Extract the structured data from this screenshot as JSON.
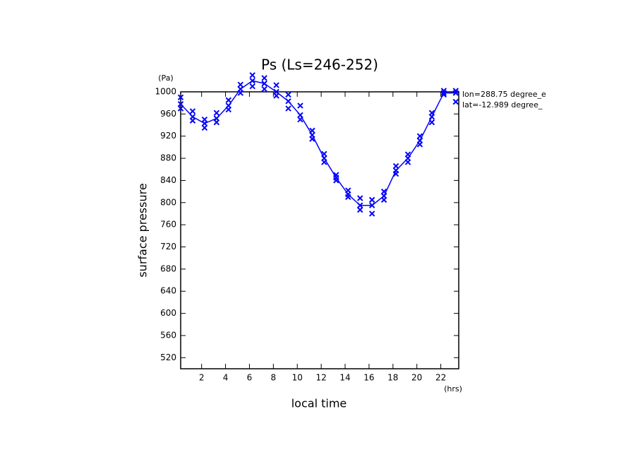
{
  "chart_data": {
    "type": "line",
    "title": "Ps (Ls=246-252)",
    "y_label": "surface pressure",
    "y_unit": "(Pa)",
    "x_label": "local time",
    "x_unit": "(hrs)",
    "annotations": [
      "lon=288.75 degree_e",
      "lat=-12.989 degree_"
    ],
    "xlim": [
      0.25,
      23.5
    ],
    "ylim": [
      500,
      1000
    ],
    "xticks": [
      2,
      4,
      6,
      8,
      10,
      12,
      14,
      16,
      18,
      20,
      22
    ],
    "yticks": [
      520,
      560,
      600,
      640,
      680,
      720,
      760,
      800,
      840,
      880,
      920,
      960,
      1000
    ],
    "x": [
      0.25,
      1.25,
      2.25,
      3.25,
      4.25,
      5.25,
      6.25,
      7.25,
      8.25,
      9.25,
      10.25,
      11.25,
      12.25,
      13.25,
      14.25,
      15.25,
      16.25,
      17.25,
      18.25,
      19.25,
      20.25,
      21.25,
      22.25,
      23.25
    ],
    "series": [
      {
        "color": "#0000ff",
        "line": true,
        "marker": "x",
        "values": [
          978,
          955,
          943,
          952,
          975,
          1005,
          1020,
          1015,
          1000,
          983,
          958,
          922,
          880,
          845,
          815,
          795,
          795,
          812,
          858,
          880,
          912,
          955,
          998,
          998
        ]
      },
      {
        "color": "#0000ff",
        "line": false,
        "marker": "x",
        "values": [
          990,
          965,
          950,
          962,
          985,
          1013,
          1030,
          1025,
          1012,
          995,
          975,
          930,
          888,
          850,
          822,
          808,
          805,
          820,
          866,
          887,
          920,
          962,
          1002,
          1002
        ]
      },
      {
        "color": "#0000ff",
        "line": false,
        "marker": "x",
        "values": [
          970,
          948,
          935,
          945,
          968,
          998,
          1010,
          1005,
          993,
          970,
          950,
          915,
          873,
          840,
          810,
          787,
          780,
          805,
          852,
          873,
          905,
          945,
          995,
          982
        ]
      }
    ]
  }
}
